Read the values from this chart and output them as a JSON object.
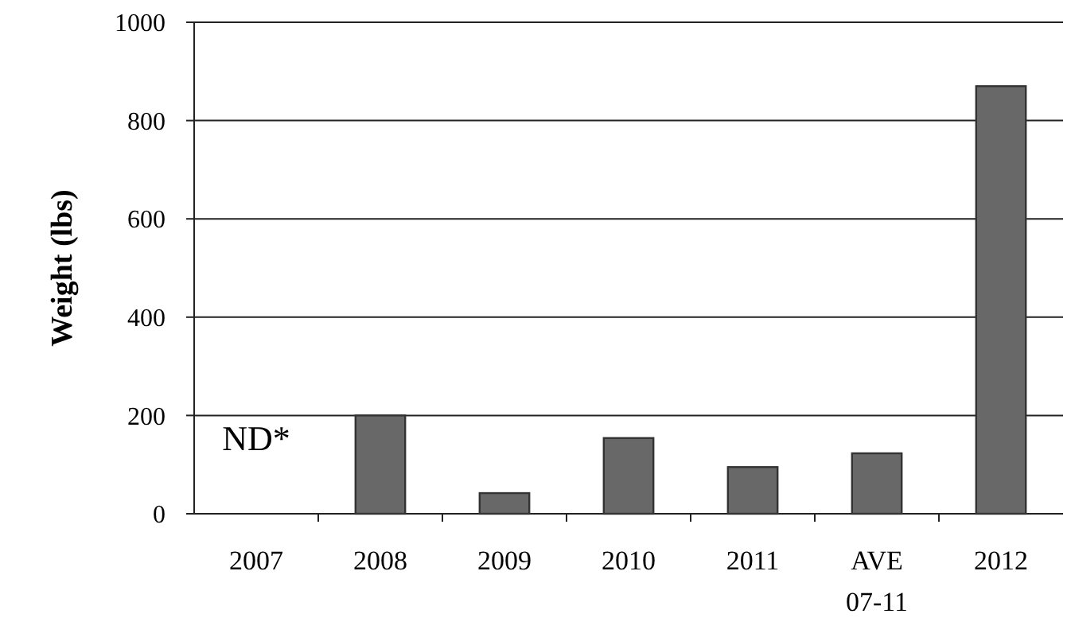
{
  "chart_data": {
    "type": "bar",
    "ylabel": "Weight (lbs)",
    "categories": [
      "2007",
      "2008",
      "2009",
      "2010",
      "2011",
      "AVE 07-11",
      "2012"
    ],
    "values": [
      null,
      200,
      42,
      154,
      95,
      123,
      870
    ],
    "color": "#686868",
    "ylim": [
      0,
      1000
    ],
    "yticks": [
      0,
      200,
      400,
      600,
      800,
      1000
    ],
    "grid": "y",
    "annotations": [
      "ND*"
    ]
  }
}
